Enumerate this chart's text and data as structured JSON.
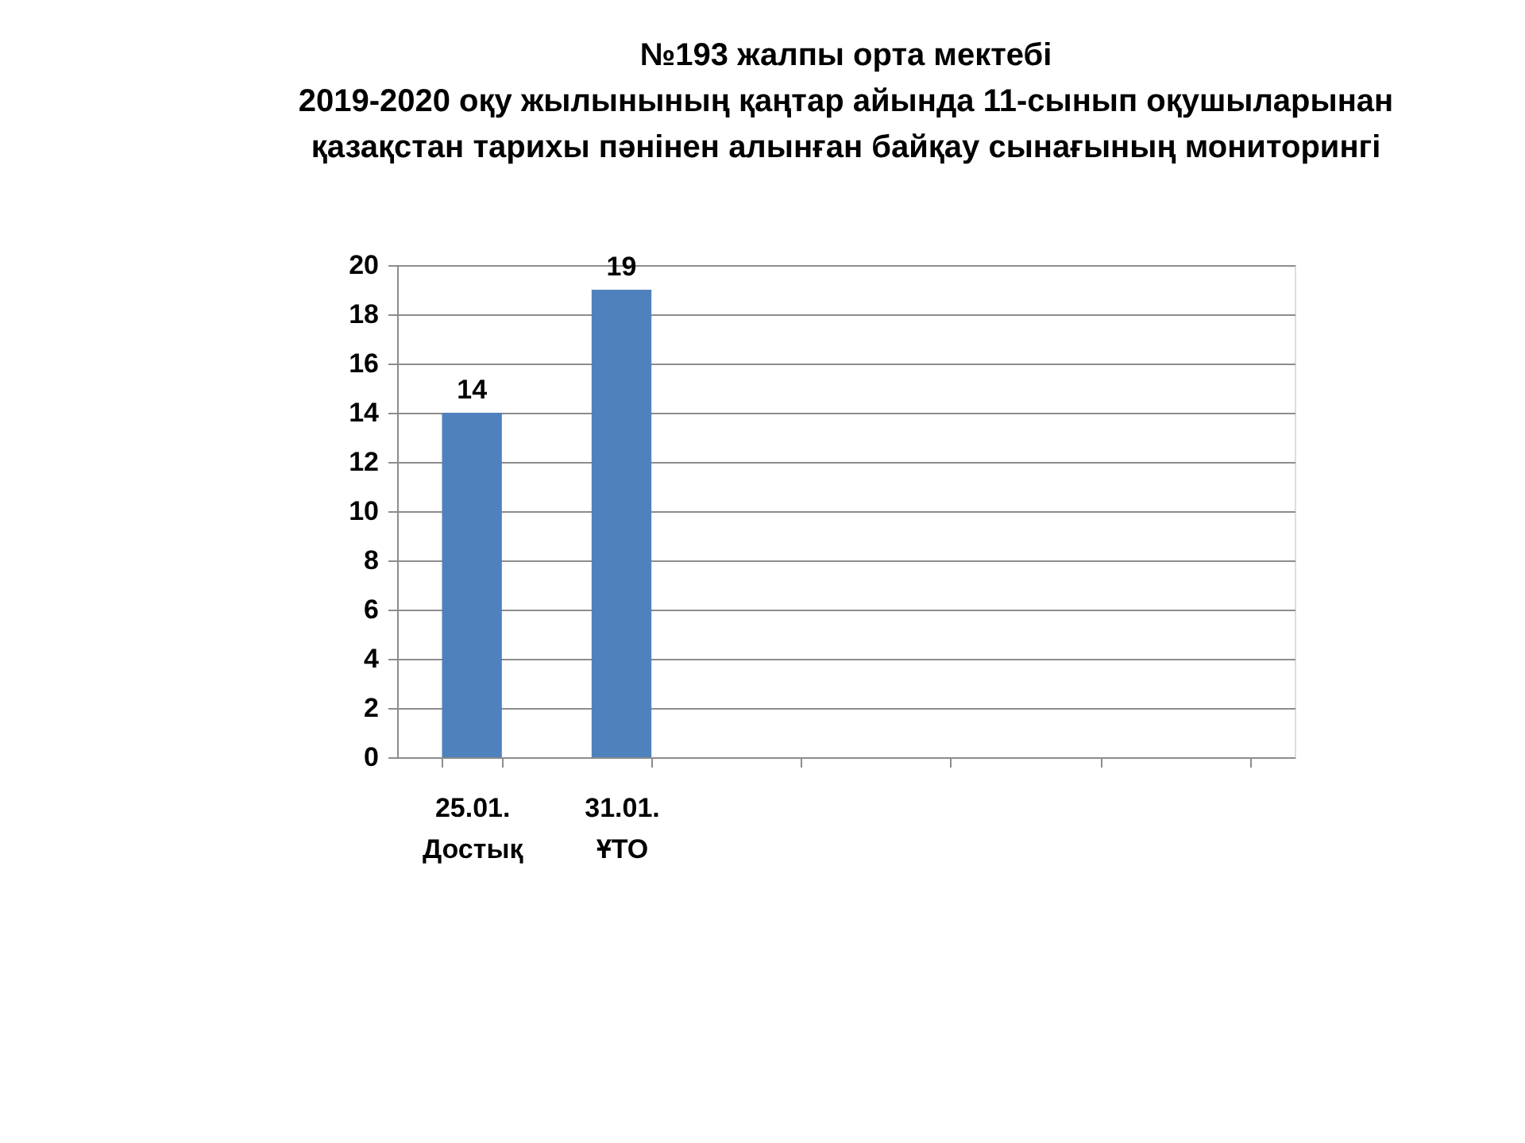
{
  "chart_data": {
    "type": "bar",
    "title": "№193  жалпы  орта   мектебі\n2019-2020  оқу жылынының қаңтар айында 11-сынып оқушыларынан\nқазақстан тарихы пәнінен алынған байқау сынағының мониторингі",
    "categories": [
      "25.01. Достық",
      "31.01. ҰТО",
      null,
      null,
      null,
      null
    ],
    "values": [
      14,
      19,
      null,
      null,
      null,
      null
    ],
    "color": "#4f81bd",
    "ylim": [
      0,
      20
    ],
    "yticks": [
      0,
      2,
      4,
      6,
      8,
      10,
      12,
      14,
      16,
      18,
      20
    ],
    "grid": "y",
    "data_labels": true
  }
}
